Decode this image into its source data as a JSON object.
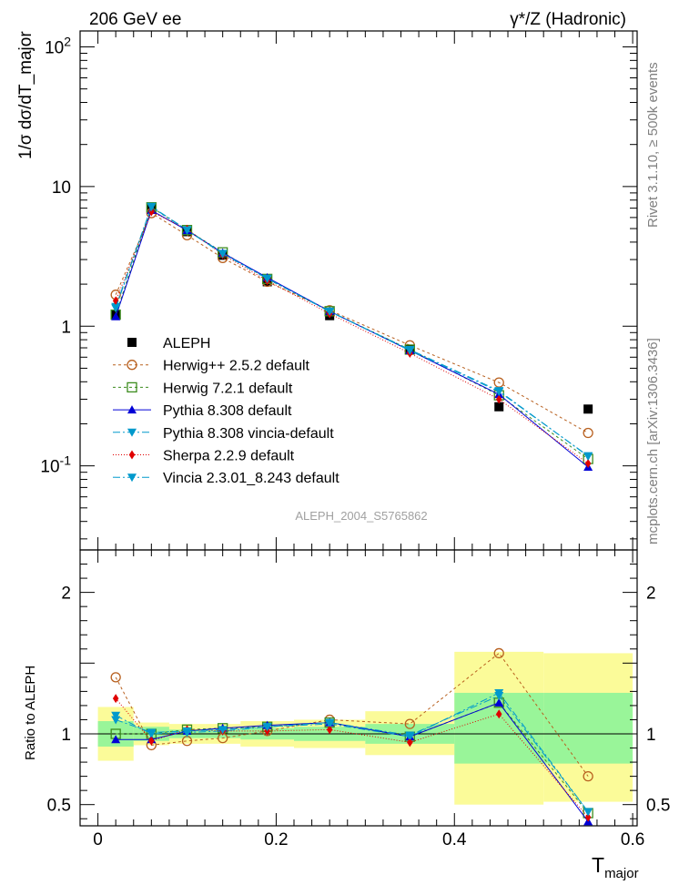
{
  "header": {
    "left": "206 GeV ee",
    "right": "γ*/Z (Hadronic)"
  },
  "side": {
    "rivet": "Rivet 3.1.10, ≥ 500k events",
    "mcplots": "mcplots.cern.ch [arXiv:1306.3436]"
  },
  "colors": {
    "band_inner": "#99f599",
    "band_outer": "#fbfb99"
  },
  "chart_data": [
    {
      "type": "line",
      "panel": "main",
      "yscale": "log",
      "ylim": [
        0.025,
        130
      ],
      "xlim": [
        -0.02,
        0.605
      ],
      "ylabel": "1/σ  dσ/dT_major",
      "yticks": [
        {
          "v": 0.1,
          "label": "10^-1"
        },
        {
          "v": 1,
          "label": "1"
        },
        {
          "v": 10,
          "label": "10"
        },
        {
          "v": 100,
          "label": "10^2"
        }
      ],
      "watermark": "ALEPH_2004_S5765862",
      "bins": [
        [
          0,
          0.04
        ],
        [
          0.04,
          0.08
        ],
        [
          0.08,
          0.12
        ],
        [
          0.12,
          0.16
        ],
        [
          0.16,
          0.22
        ],
        [
          0.22,
          0.3
        ],
        [
          0.3,
          0.4
        ],
        [
          0.4,
          0.5
        ],
        [
          0.5,
          0.6
        ]
      ],
      "data": {
        "name": "ALEPH",
        "x": [
          0.02,
          0.06,
          0.1,
          0.14,
          0.19,
          0.26,
          0.35,
          0.45,
          0.55
        ],
        "values": [
          1.22,
          7.0,
          4.75,
          3.22,
          2.08,
          1.19,
          0.68,
          0.265,
          0.255
        ]
      },
      "series": [
        {
          "name": "Herwig++ 2.5.2 default",
          "color": "#b8601f",
          "marker": "circle-open",
          "dash": "3,3",
          "values": [
            1.68,
            6.45,
            4.48,
            3.08,
            2.08,
            1.3,
            0.73,
            0.395,
            0.172
          ]
        },
        {
          "name": "Herwig 7.2.1 default",
          "color": "#3c8c1e",
          "marker": "square-open",
          "dash": "3,3",
          "values": [
            1.21,
            7.1,
            4.88,
            3.38,
            2.18,
            1.28,
            0.68,
            0.32,
            0.112
          ]
        },
        {
          "name": "Pythia 8.308 default",
          "color": "#0000d6",
          "marker": "triangle-up",
          "dash": "",
          "values": [
            1.17,
            6.75,
            4.85,
            3.35,
            2.23,
            1.28,
            0.67,
            0.325,
            0.098
          ]
        },
        {
          "name": "Pythia 8.308 vincia-default",
          "color": "#0099cc",
          "marker": "triangle-down",
          "dash": "8,3,2,3",
          "values": [
            1.38,
            7.2,
            4.9,
            3.32,
            2.2,
            1.27,
            0.68,
            0.345,
            0.117
          ]
        },
        {
          "name": "Sherpa 2.2.9 default",
          "color": "#e00000",
          "marker": "diamond",
          "dash": "1,2",
          "values": [
            1.52,
            6.6,
            4.95,
            3.25,
            2.12,
            1.23,
            0.64,
            0.3,
            0.104
          ]
        },
        {
          "name": "Vincia 2.3.01_8.243 default",
          "color": "#0099cc",
          "marker": "triangle-down",
          "dash": "8,3,2,3",
          "values": [
            1.35,
            7.15,
            4.86,
            3.3,
            2.19,
            1.28,
            0.67,
            0.34,
            0.118
          ]
        }
      ]
    },
    {
      "type": "line",
      "panel": "ratio",
      "ylabel": "Ratio to ALEPH",
      "xlabel": "T_major",
      "ylim": [
        0.35,
        2.3
      ],
      "yticks": [
        {
          "v": 0.5,
          "label": "0.5"
        },
        {
          "v": 1,
          "label": "1"
        },
        {
          "v": 2,
          "label": "2"
        }
      ],
      "xticks": [
        {
          "v": 0,
          "label": "0"
        },
        {
          "v": 0.2,
          "label": "0.2"
        },
        {
          "v": 0.4,
          "label": "0.4"
        },
        {
          "v": 0.6,
          "label": "0.6"
        }
      ],
      "band_inner": [
        [
          0.91,
          1.09
        ],
        [
          0.95,
          1.05
        ],
        [
          0.97,
          1.03
        ],
        [
          0.97,
          1.03
        ],
        [
          0.96,
          1.04
        ],
        [
          0.95,
          1.05
        ],
        [
          0.93,
          1.07
        ],
        [
          0.79,
          1.29
        ],
        [
          0.79,
          1.29
        ]
      ],
      "band_outer": [
        [
          0.81,
          1.19
        ],
        [
          0.92,
          1.08
        ],
        [
          0.93,
          1.07
        ],
        [
          0.93,
          1.07
        ],
        [
          0.91,
          1.09
        ],
        [
          0.9,
          1.1
        ],
        [
          0.85,
          1.16
        ],
        [
          0.5,
          1.58
        ],
        [
          0.52,
          1.57
        ]
      ],
      "series": [
        {
          "name": "Herwig++ 2.5.2 default",
          "values": [
            1.4,
            0.92,
            0.95,
            0.97,
            1.02,
            1.1,
            1.07,
            1.57,
            0.7
          ]
        },
        {
          "name": "Herwig 7.2.1 default",
          "values": [
            1.0,
            1.0,
            1.03,
            1.04,
            1.05,
            1.08,
            0.98,
            1.22,
            0.44
          ]
        },
        {
          "name": "Pythia 8.308 default",
          "values": [
            0.96,
            0.96,
            1.02,
            1.04,
            1.06,
            1.08,
            0.98,
            1.22,
            0.38
          ]
        },
        {
          "name": "Pythia 8.308 vincia-default",
          "values": [
            1.13,
            1.0,
            1.01,
            1.02,
            1.05,
            1.07,
            0.98,
            1.29,
            0.45
          ]
        },
        {
          "name": "Sherpa 2.2.9 default",
          "values": [
            1.25,
            0.95,
            1.03,
            1.02,
            1.02,
            1.03,
            0.94,
            1.14,
            0.41
          ]
        },
        {
          "name": "Vincia 2.3.01_8.243 default",
          "values": [
            1.1,
            1.01,
            1.02,
            1.03,
            1.05,
            1.08,
            0.99,
            1.27,
            0.45
          ]
        }
      ]
    }
  ]
}
